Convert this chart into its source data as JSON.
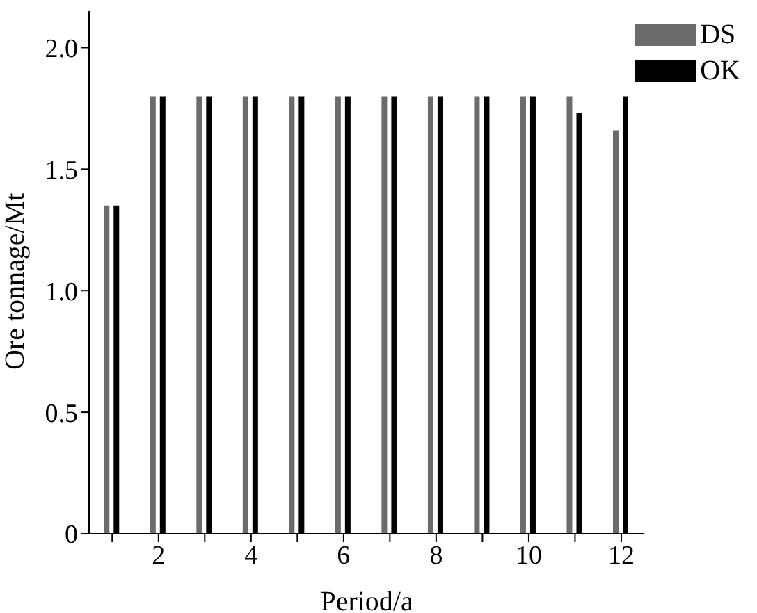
{
  "chart_data": {
    "type": "bar",
    "xlabel": "Period/a",
    "ylabel": "Ore tonnage/Mt",
    "categories": [
      null,
      "2",
      null,
      "4",
      null,
      "6",
      null,
      "8",
      null,
      "10",
      null,
      "12"
    ],
    "series": [
      {
        "name": "DS",
        "color": "#6b6b6b",
        "values": [
          1.35,
          1.8,
          1.8,
          1.8,
          1.8,
          1.8,
          1.8,
          1.8,
          1.8,
          1.8,
          1.8,
          1.66
        ]
      },
      {
        "name": "OK",
        "color": "#000000",
        "values": [
          1.35,
          1.8,
          1.8,
          1.8,
          1.8,
          1.8,
          1.8,
          1.8,
          1.8,
          1.8,
          1.73,
          1.8
        ]
      }
    ],
    "ylim": [
      0,
      2.15
    ],
    "yticks": [
      0,
      {
        "value": 0.5,
        "label": "0.5"
      },
      {
        "value": 1,
        "label": "1.0"
      },
      {
        "value": 1.5,
        "label": "1.5"
      },
      {
        "value": 2,
        "label": "2.0"
      }
    ],
    "legend": "top right"
  }
}
